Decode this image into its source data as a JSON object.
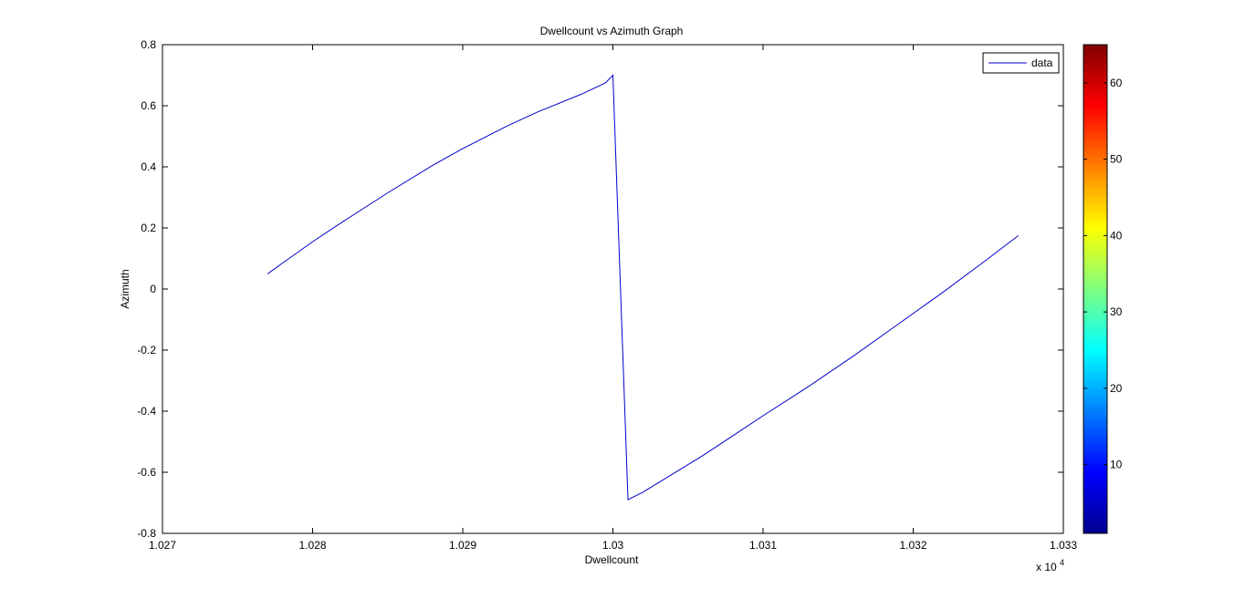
{
  "chart_data": {
    "type": "line",
    "title": "Dwellcount vs Azimuth Graph",
    "xlabel": "Dwellcount",
    "ylabel": "Azimuth",
    "x_scale_note": "x 10",
    "x_scale_exponent": "4",
    "xlim": [
      1.027,
      1.033
    ],
    "ylim": [
      -0.8,
      0.8
    ],
    "xticks": [
      1.027,
      1.028,
      1.029,
      1.03,
      1.031,
      1.032,
      1.033
    ],
    "xtick_labels": [
      "1.027",
      "1.028",
      "1.029",
      "1.03",
      "1.031",
      "1.032",
      "1.033"
    ],
    "yticks": [
      -0.8,
      -0.6,
      -0.4,
      -0.2,
      0,
      0.2,
      0.4,
      0.6,
      0.8
    ],
    "ytick_labels": [
      "-0.8",
      "-0.6",
      "-0.4",
      "-0.2",
      "0",
      "0.2",
      "0.4",
      "0.6",
      "0.8"
    ],
    "grid": false,
    "legend_position": "top-right",
    "series": [
      {
        "name": "data",
        "color": "#0000cc",
        "x": [
          1.0277,
          1.0278,
          1.028,
          1.0282,
          1.0285,
          1.0288,
          1.029,
          1.0293,
          1.0295,
          1.0298,
          1.02995,
          1.03,
          1.0301,
          1.0302,
          1.0304,
          1.0306,
          1.0308,
          1.031,
          1.0313,
          1.0316,
          1.0319,
          1.0322,
          1.0325,
          1.0327
        ],
        "y": [
          0.05,
          0.085,
          0.155,
          0.22,
          0.315,
          0.405,
          0.46,
          0.535,
          0.58,
          0.64,
          0.675,
          0.7,
          -0.69,
          -0.665,
          -0.605,
          -0.545,
          -0.48,
          -0.415,
          -0.32,
          -0.22,
          -0.115,
          -0.01,
          0.1,
          0.175
        ]
      }
    ],
    "colorbar": {
      "min": 1,
      "max": 65,
      "ticks": [
        10,
        20,
        30,
        40,
        50,
        60
      ],
      "tick_labels": [
        "10",
        "20",
        "30",
        "40",
        "50",
        "60"
      ],
      "colormap": "jet"
    }
  }
}
